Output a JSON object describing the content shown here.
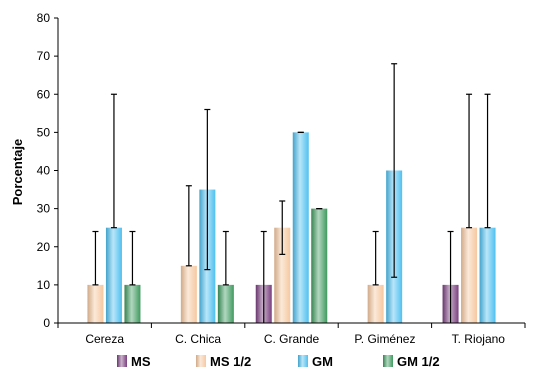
{
  "chart_data": {
    "type": "bar",
    "title": "",
    "xlabel": "",
    "ylabel": "Porcentaje",
    "ylim": [
      0,
      80
    ],
    "yticks": [
      0,
      10,
      20,
      30,
      40,
      50,
      60,
      70,
      80
    ],
    "categories": [
      "Cereza",
      "C. Chica",
      "C. Grande",
      "P. Giménez",
      "T. Riojano"
    ],
    "legend_position": "bottom",
    "grid": false,
    "series": [
      {
        "name": "MS",
        "color": "#7a3f7f",
        "values": [
          0,
          0,
          10,
          0,
          10
        ],
        "error_upper": [
          0,
          0,
          24,
          0,
          24
        ],
        "error_lower": [
          0,
          0,
          0,
          0,
          0
        ]
      },
      {
        "name": "MS 1/2",
        "color": "#f6c8a0",
        "values": [
          10,
          15,
          25,
          10,
          25
        ],
        "error_upper": [
          24,
          36,
          32,
          24,
          60
        ],
        "error_lower": [
          10,
          15,
          18,
          10,
          25
        ]
      },
      {
        "name": "GM",
        "color": "#4fc0ef",
        "values": [
          25,
          35,
          50,
          40,
          25
        ],
        "error_upper": [
          60,
          56,
          50,
          68,
          60
        ],
        "error_lower": [
          25,
          14,
          50,
          12,
          25
        ]
      },
      {
        "name": "GM 1/2",
        "color": "#3f9a5f",
        "values": [
          10,
          10,
          30,
          0,
          0
        ],
        "error_upper": [
          24,
          24,
          30,
          0,
          0
        ],
        "error_lower": [
          10,
          10,
          30,
          0,
          0
        ]
      }
    ]
  }
}
